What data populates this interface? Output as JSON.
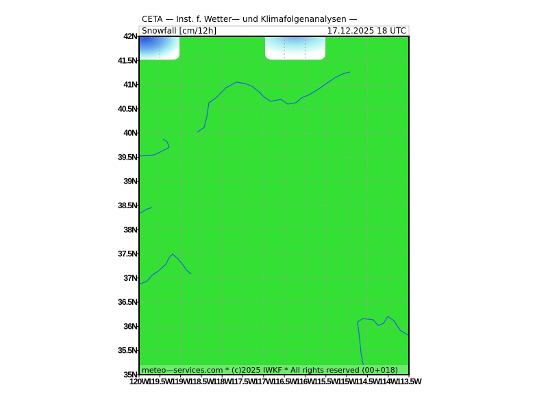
{
  "header": {
    "title": "CETA — Inst. f. Wetter— und Klimafolgenanalysen —",
    "product": "Snowfall [cm/12h]",
    "valid": "17.12.2025 18 UTC"
  },
  "footer": {
    "credit": "meteo—services.com * (c)2025 IWKF * All rights reserved (00+018)"
  },
  "axes": {
    "lat_labels": [
      "42N",
      "41.5N",
      "41N",
      "40.5N",
      "40N",
      "39.5N",
      "39N",
      "38.5N",
      "38N",
      "37.5N",
      "37N",
      "36.5N",
      "36N",
      "35.5N",
      "35N"
    ],
    "lon_labels": [
      "120W",
      "119.5W",
      "119W",
      "118.5W",
      "118W",
      "117.5W",
      "117W",
      "116.5W",
      "116W",
      "115.5W",
      "115W",
      "114.5W",
      "114W",
      "113.5W"
    ]
  }
}
